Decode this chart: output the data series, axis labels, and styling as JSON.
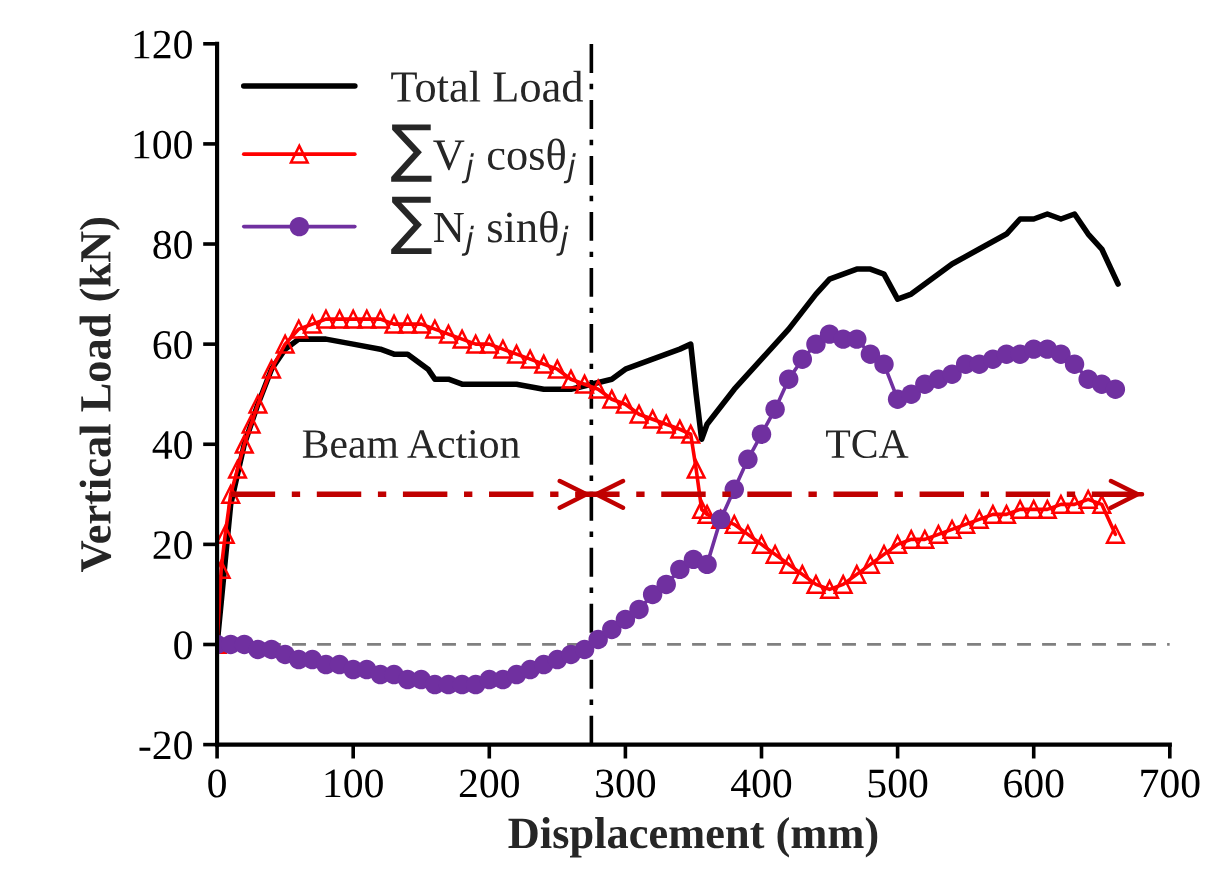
{
  "chart_data": {
    "type": "line",
    "xlabel": "Displacement (mm)",
    "ylabel": "Vertical Load (kN)",
    "xlim": [
      0,
      700
    ],
    "xticks": [
      0,
      100,
      200,
      300,
      400,
      500,
      600,
      700
    ],
    "ylim": [
      -20,
      120
    ],
    "yticks": [
      -20,
      0,
      20,
      40,
      60,
      80,
      100,
      120
    ],
    "grid": false,
    "legend": "top left",
    "series": [
      {
        "name": "Total Load",
        "color": "#000000",
        "marker": "none",
        "x": [
          0,
          10,
          20,
          30,
          40,
          50,
          60,
          80,
          100,
          120,
          130,
          140,
          150,
          155,
          160,
          170,
          180,
          200,
          220,
          240,
          260,
          275,
          290,
          300,
          320,
          340,
          348,
          352,
          356,
          360,
          380,
          400,
          420,
          440,
          450,
          460,
          470,
          480,
          490,
          500,
          510,
          520,
          540,
          560,
          580,
          590,
          600,
          610,
          620,
          630,
          640,
          650,
          662
        ],
        "values": [
          0,
          28,
          40,
          48,
          55,
          59,
          61,
          61,
          60,
          59,
          58,
          58,
          56,
          55,
          53,
          53,
          52,
          52,
          52,
          51,
          51,
          52,
          53,
          55,
          57,
          59,
          60,
          50,
          41,
          44,
          51,
          57,
          63,
          70,
          73,
          74,
          75,
          75,
          74,
          69,
          70,
          72,
          76,
          79,
          82,
          85,
          85,
          86,
          85,
          86,
          82,
          79,
          72
        ]
      },
      {
        "name": "∑V$_{j}$ cosθ$_{j}$",
        "color": "#ff0000",
        "marker": "triangle",
        "x": [
          0,
          3,
          6,
          10,
          15,
          20,
          25,
          30,
          40,
          50,
          60,
          70,
          80,
          90,
          100,
          110,
          120,
          130,
          140,
          150,
          160,
          170,
          180,
          190,
          200,
          210,
          220,
          230,
          240,
          250,
          260,
          270,
          280,
          290,
          300,
          310,
          320,
          330,
          340,
          348,
          352,
          356,
          360,
          370,
          380,
          390,
          400,
          410,
          420,
          430,
          440,
          450,
          460,
          470,
          480,
          490,
          500,
          510,
          520,
          530,
          540,
          550,
          560,
          570,
          580,
          590,
          600,
          610,
          620,
          630,
          640,
          650,
          660
        ],
        "values": [
          0,
          15,
          22,
          30,
          35,
          40,
          44,
          48,
          55,
          60,
          63,
          64,
          65,
          65,
          65,
          65,
          65,
          64,
          64,
          64,
          63,
          62,
          61,
          60,
          60,
          59,
          58,
          57,
          56,
          55,
          53,
          52,
          51,
          49,
          48,
          46,
          45,
          44,
          43,
          42,
          35,
          27,
          26,
          25,
          24,
          22,
          20,
          18,
          16,
          14,
          12,
          11,
          12,
          14,
          16,
          18,
          20,
          21,
          21,
          22,
          23,
          24,
          25,
          26,
          26,
          27,
          27,
          27,
          28,
          28,
          29,
          28,
          22
        ]
      },
      {
        "name": "∑N$_{j}$ sinθ$_{j}$",
        "color": "#7030a0",
        "marker": "circle",
        "x": [
          0,
          10,
          20,
          30,
          40,
          50,
          60,
          70,
          80,
          90,
          100,
          110,
          120,
          130,
          140,
          150,
          160,
          170,
          180,
          190,
          200,
          210,
          220,
          230,
          240,
          250,
          260,
          270,
          280,
          290,
          300,
          310,
          320,
          330,
          340,
          350,
          360,
          370,
          380,
          390,
          400,
          410,
          420,
          430,
          440,
          450,
          460,
          470,
          480,
          490,
          500,
          510,
          520,
          530,
          540,
          550,
          560,
          570,
          580,
          590,
          600,
          610,
          620,
          630,
          640,
          650,
          660
        ],
        "values": [
          0,
          0,
          0,
          -1,
          -1,
          -2,
          -3,
          -3,
          -4,
          -4,
          -5,
          -5,
          -6,
          -6,
          -7,
          -7,
          -8,
          -8,
          -8,
          -8,
          -7,
          -7,
          -6,
          -5,
          -4,
          -3,
          -2,
          -1,
          1,
          3,
          5,
          7,
          10,
          12,
          15,
          17,
          16,
          25,
          31,
          37,
          42,
          47,
          53,
          57,
          60,
          62,
          61,
          61,
          58,
          56,
          49,
          50,
          52,
          53,
          54,
          56,
          56,
          57,
          58,
          58,
          59,
          59,
          58,
          56,
          53,
          52,
          51
        ]
      },
      {
        "color": "#c00000",
        "marker": "none",
        "line_style": "dashdot",
        "x": [
          10,
          275,
          680
        ],
        "values": [
          30,
          30,
          30
        ]
      }
    ],
    "ref_lines": [
      {
        "axis": "y",
        "value": 0,
        "color": "#808080",
        "line_style": "dashed"
      },
      {
        "axis": "x",
        "value": 275,
        "color": "#000000",
        "line_style": "dashdot"
      }
    ],
    "annotations": [
      "Beam Action",
      "TCA"
    ]
  }
}
